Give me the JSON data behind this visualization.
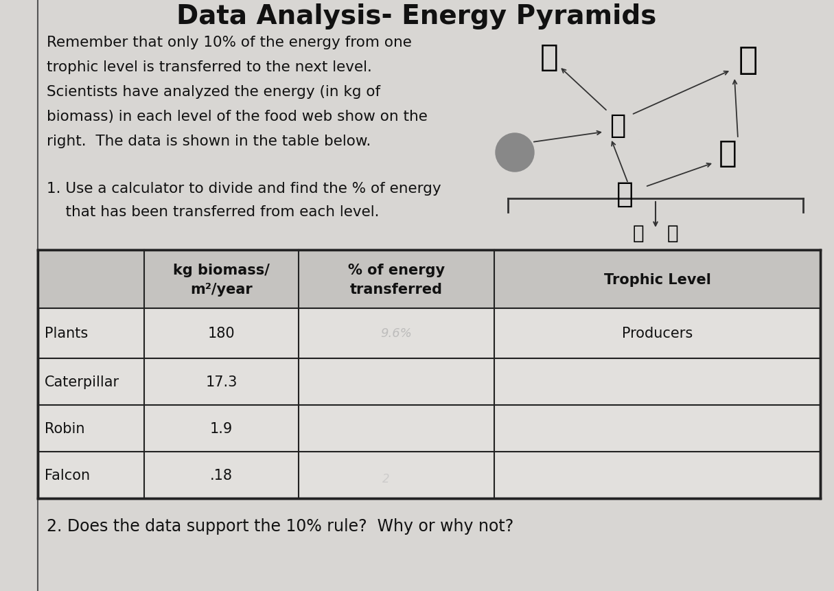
{
  "intro_text_lines": [
    "Remember that only 10% of the energy from one",
    "trophic level is transferred to the next level.",
    "Scientists have analyzed the energy (in kg of",
    "biomass) in each level of the food web show on the",
    "right.  The data is shown in the table below."
  ],
  "question1_lines": [
    "1. Use a calculator to divide and find the % of energy",
    "    that has been transferred from each level."
  ],
  "question2": "2. Does the data support the 10% rule?  Why or why not?",
  "table_headers": [
    "",
    "kg biomass/\nm²/year",
    "% of energy\ntransferred",
    "Trophic Level"
  ],
  "table_rows": [
    [
      "Plants",
      "180",
      "",
      "Producers"
    ],
    [
      "Caterpillar",
      "17.3",
      "",
      ""
    ],
    [
      "Robin",
      "1.9",
      "",
      ""
    ],
    [
      "Falcon",
      ".18",
      "",
      ""
    ]
  ],
  "bg_color": "#d8d6d3",
  "cell_bg": "#e2e0dd",
  "header_bg": "#c5c3c0",
  "border_color": "#222222",
  "text_color": "#111111",
  "light_text": "#999999"
}
